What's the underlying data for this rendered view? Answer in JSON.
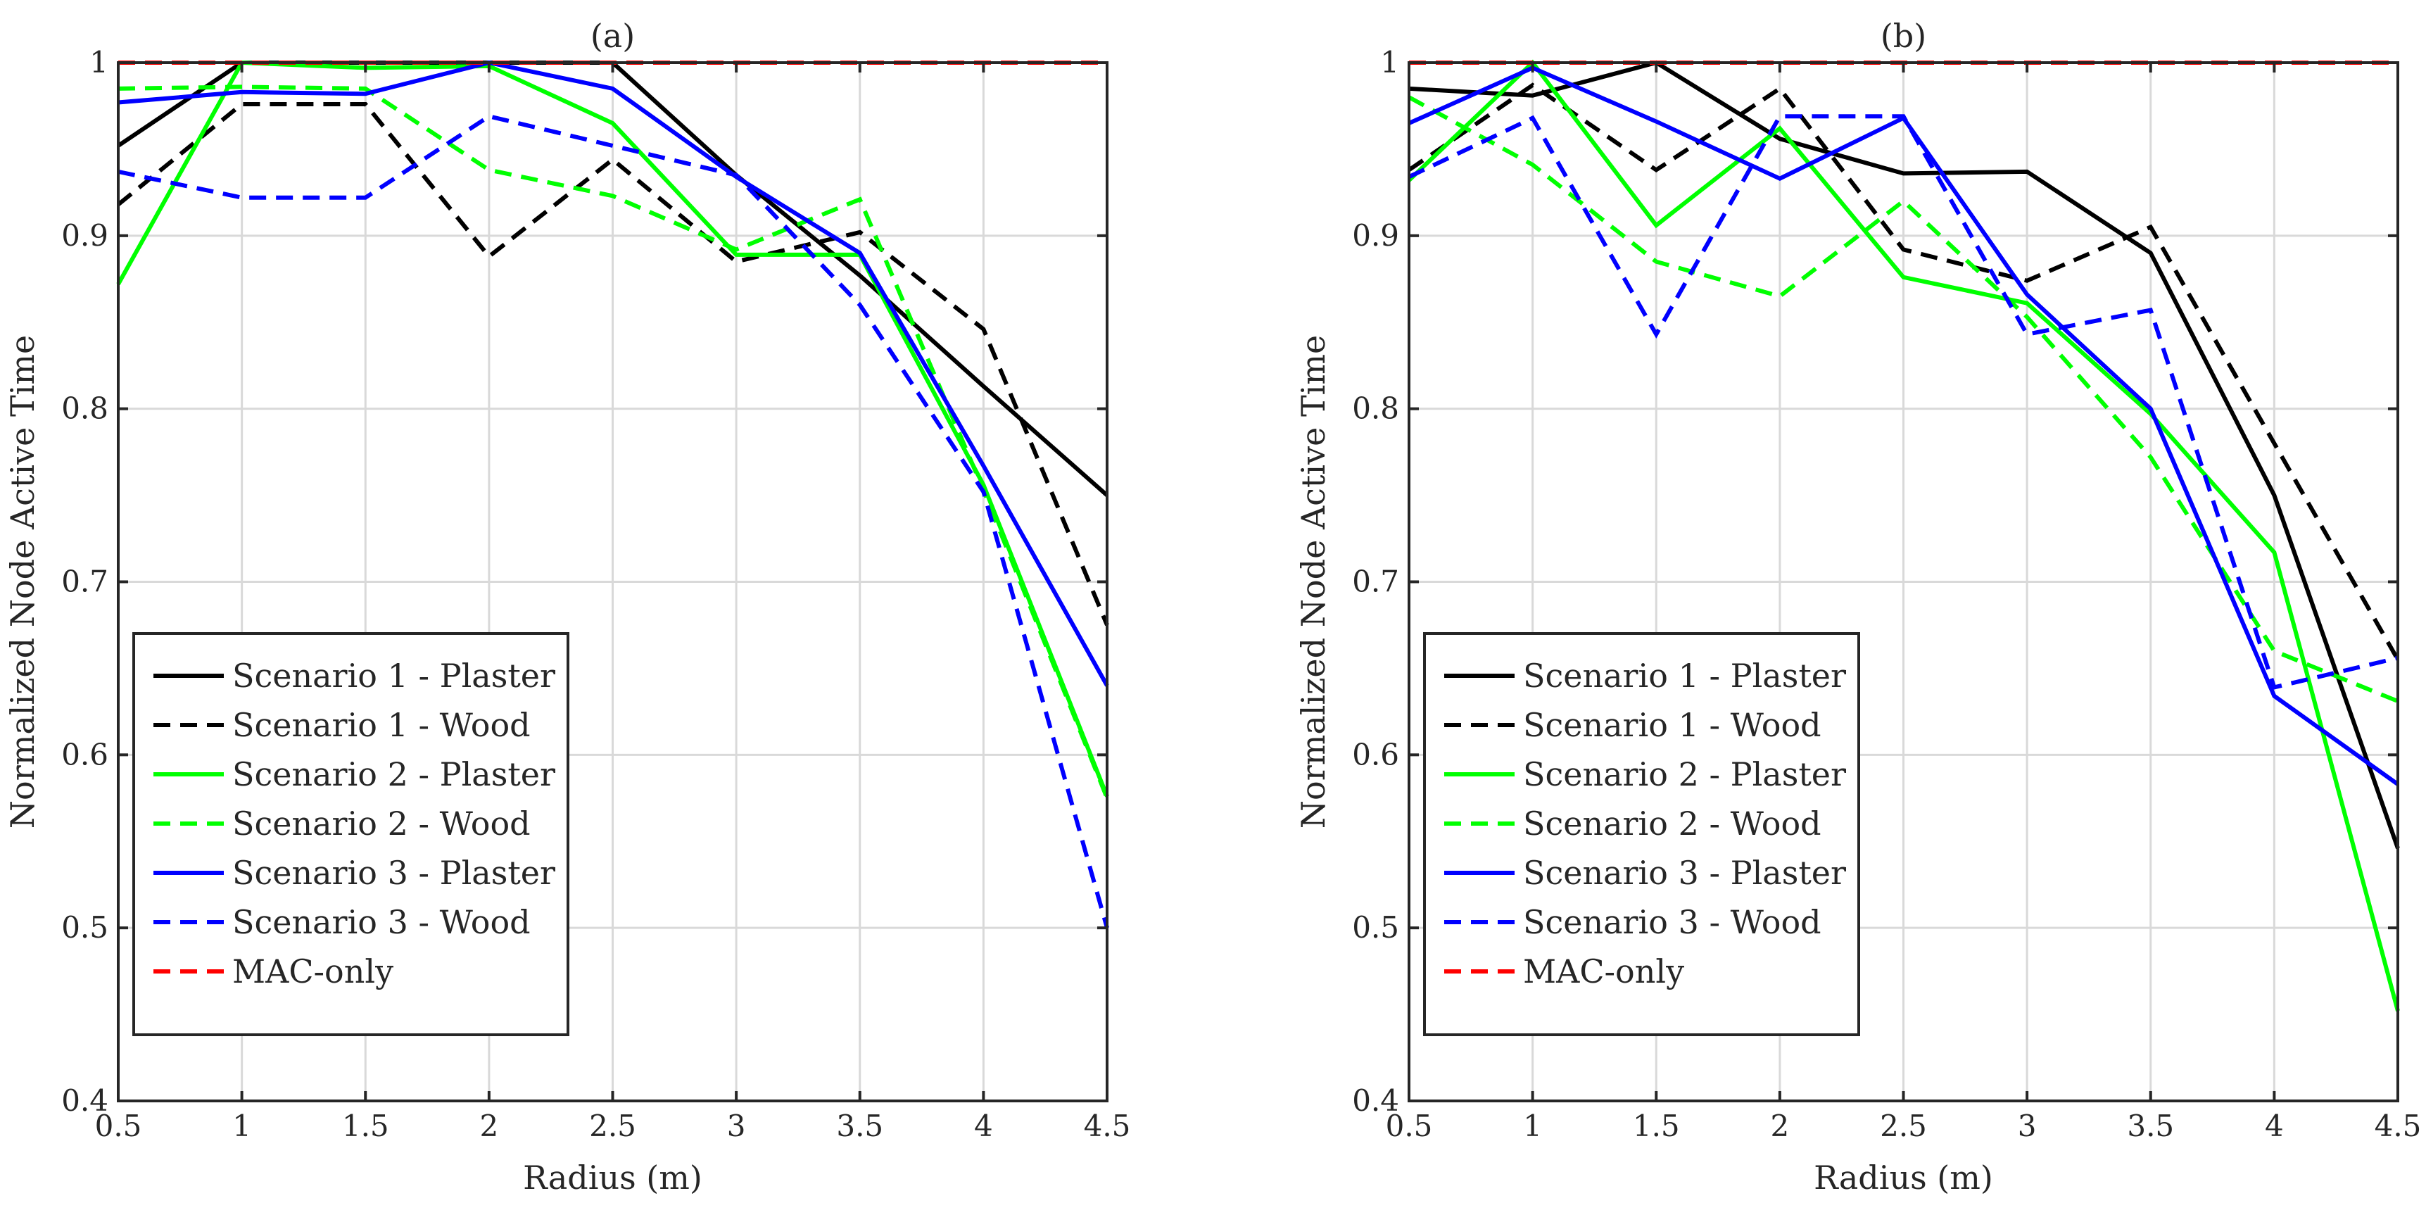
{
  "figure": {
    "line_styles": {
      "Scenario 1 - Plaster": {
        "color": "#000000",
        "dash": "solid"
      },
      "Scenario 1 - Wood": {
        "color": "#000000",
        "dash": "dashed"
      },
      "Scenario 2 - Plaster": {
        "color": "#00ff00",
        "dash": "solid"
      },
      "Scenario 2 - Wood": {
        "color": "#00ff00",
        "dash": "dashed"
      },
      "Scenario 3 - Plaster": {
        "color": "#0000ff",
        "dash": "solid"
      },
      "Scenario 3 - Wood": {
        "color": "#0000ff",
        "dash": "dashed"
      },
      "MAC-only": {
        "color": "#ff0000",
        "dash": "dashed"
      }
    }
  },
  "chart_data": [
    {
      "type": "line",
      "title": "(a)",
      "xlabel": "Radius (m)",
      "ylabel": "Normalized Node Active Time",
      "xlim": [
        0.5,
        4.5
      ],
      "ylim": [
        0.4,
        1.0
      ],
      "xticks": [
        "0.5",
        "1",
        "1.5",
        "2",
        "2.5",
        "3",
        "3.5",
        "4",
        "4.5"
      ],
      "yticks": [
        "0.4",
        "0.5",
        "0.6",
        "0.7",
        "0.8",
        "0.9",
        "1"
      ],
      "grid": true,
      "legend_position": "bottom-left",
      "x": [
        0.5,
        1.0,
        1.5,
        2.0,
        2.5,
        3.0,
        3.5,
        4.0,
        4.5
      ],
      "series": [
        {
          "name": "Scenario 1 - Plaster",
          "values": [
            0.952,
            1.0,
            1.0,
            1.0,
            1.0,
            0.935,
            0.877,
            0.813,
            0.75
          ]
        },
        {
          "name": "Scenario 1 - Wood",
          "values": [
            0.918,
            0.976,
            0.976,
            0.888,
            0.944,
            0.885,
            0.902,
            0.846,
            0.675
          ]
        },
        {
          "name": "Scenario 2 - Plaster",
          "values": [
            0.872,
            1.0,
            0.997,
            0.998,
            0.965,
            0.889,
            0.889,
            0.756,
            0.576
          ]
        },
        {
          "name": "Scenario 2 - Wood",
          "values": [
            0.985,
            0.986,
            0.985,
            0.938,
            0.923,
            0.892,
            0.921,
            0.753,
            0.575
          ]
        },
        {
          "name": "Scenario 3 - Plaster",
          "values": [
            0.977,
            0.983,
            0.982,
            1.0,
            0.985,
            0.934,
            0.89,
            0.767,
            0.64
          ]
        },
        {
          "name": "Scenario 3 - Wood",
          "values": [
            0.937,
            0.922,
            0.922,
            0.969,
            0.952,
            0.935,
            0.86,
            0.752,
            0.5
          ]
        },
        {
          "name": "MAC-only",
          "values": [
            1.0,
            1.0,
            1.0,
            1.0,
            1.0,
            1.0,
            1.0,
            1.0,
            1.0
          ]
        }
      ]
    },
    {
      "type": "line",
      "title": "(b)",
      "xlabel": "Radius (m)",
      "ylabel": "Normalized Node Active Time",
      "xlim": [
        0.5,
        4.5
      ],
      "ylim": [
        0.4,
        1.0
      ],
      "xticks": [
        "0.5",
        "1",
        "1.5",
        "2",
        "2.5",
        "3",
        "3.5",
        "4",
        "4.5"
      ],
      "yticks": [
        "0.4",
        "0.5",
        "0.6",
        "0.7",
        "0.8",
        "0.9",
        "1"
      ],
      "grid": true,
      "legend_position": "bottom-left",
      "x": [
        0.5,
        1.0,
        1.5,
        2.0,
        2.5,
        3.0,
        3.5,
        4.0,
        4.5
      ],
      "series": [
        {
          "name": "Scenario 1 - Plaster",
          "values": [
            0.985,
            0.981,
            1.0,
            0.956,
            0.936,
            0.937,
            0.89,
            0.75,
            0.546
          ]
        },
        {
          "name": "Scenario 1 - Wood",
          "values": [
            0.938,
            0.987,
            0.938,
            0.985,
            0.892,
            0.874,
            0.905,
            0.78,
            0.655
          ]
        },
        {
          "name": "Scenario 2 - Plaster",
          "values": [
            0.932,
            1.0,
            0.906,
            0.962,
            0.876,
            0.861,
            0.797,
            0.717,
            0.452
          ]
        },
        {
          "name": "Scenario 2 - Wood",
          "values": [
            0.98,
            0.941,
            0.885,
            0.865,
            0.92,
            0.853,
            0.772,
            0.66,
            0.631
          ]
        },
        {
          "name": "Scenario 3 - Plaster",
          "values": [
            0.965,
            0.997,
            0.966,
            0.933,
            0.968,
            0.866,
            0.8,
            0.634,
            0.583
          ]
        },
        {
          "name": "Scenario 3 - Wood",
          "values": [
            0.934,
            0.968,
            0.843,
            0.969,
            0.969,
            0.843,
            0.857,
            0.639,
            0.656
          ]
        },
        {
          "name": "MAC-only",
          "values": [
            1.0,
            1.0,
            1.0,
            1.0,
            1.0,
            1.0,
            1.0,
            1.0,
            1.0
          ]
        }
      ]
    }
  ]
}
